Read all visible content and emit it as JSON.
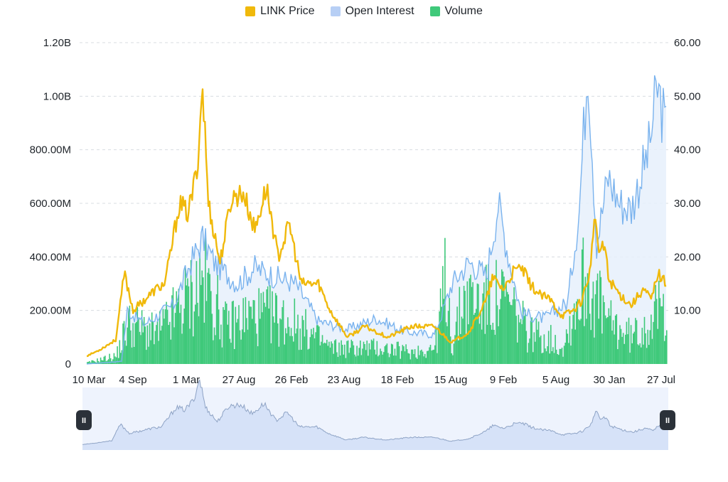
{
  "legend": [
    {
      "label": "LINK Price",
      "color": "#f0b90b"
    },
    {
      "label": "Open Interest",
      "color": "#b7cff5"
    },
    {
      "label": "Volume",
      "color": "#3fc97a"
    }
  ],
  "chart_data": {
    "type": "line",
    "x_tick_labels": [
      "10 Mar",
      "4 Sep",
      "1 Mar",
      "27 Aug",
      "26 Feb",
      "23 Aug",
      "18 Feb",
      "15 Aug",
      "9 Feb",
      "5 Aug",
      "30 Jan",
      "27 Jul"
    ],
    "left_axis": {
      "ticks": [
        "0",
        "200.00M",
        "400.00M",
        "600.00M",
        "800.00M",
        "1.00B",
        "1.20B"
      ],
      "ylim": [
        0,
        1200000000
      ]
    },
    "right_axis": {
      "ticks": [
        "10.00",
        "20.00",
        "30.00",
        "40.00",
        "50.00",
        "60.00"
      ],
      "ylim": [
        0,
        60
      ]
    },
    "grid": true,
    "legend_position": "top-center",
    "series": [
      {
        "name": "LINK Price",
        "type": "line",
        "axis": "right",
        "color": "#f0b90b",
        "points": [
          [
            0,
            1.5
          ],
          [
            0.02,
            2.5
          ],
          [
            0.05,
            4.5
          ],
          [
            0.065,
            17
          ],
          [
            0.08,
            10
          ],
          [
            0.1,
            12
          ],
          [
            0.12,
            14
          ],
          [
            0.135,
            15
          ],
          [
            0.16,
            30
          ],
          [
            0.175,
            28
          ],
          [
            0.19,
            36
          ],
          [
            0.2,
            52
          ],
          [
            0.21,
            30
          ],
          [
            0.23,
            19
          ],
          [
            0.25,
            31
          ],
          [
            0.27,
            32
          ],
          [
            0.29,
            25
          ],
          [
            0.31,
            33
          ],
          [
            0.33,
            20
          ],
          [
            0.35,
            26
          ],
          [
            0.37,
            15
          ],
          [
            0.4,
            15
          ],
          [
            0.42,
            10
          ],
          [
            0.45,
            5
          ],
          [
            0.48,
            7
          ],
          [
            0.52,
            5
          ],
          [
            0.56,
            7
          ],
          [
            0.6,
            7
          ],
          [
            0.63,
            4
          ],
          [
            0.66,
            6
          ],
          [
            0.69,
            12
          ],
          [
            0.7,
            16
          ],
          [
            0.72,
            14
          ],
          [
            0.735,
            17
          ],
          [
            0.75,
            18
          ],
          [
            0.765,
            15
          ],
          [
            0.78,
            13
          ],
          [
            0.8,
            12
          ],
          [
            0.82,
            9
          ],
          [
            0.84,
            10
          ],
          [
            0.855,
            12
          ],
          [
            0.87,
            18
          ],
          [
            0.875,
            27
          ],
          [
            0.885,
            21
          ],
          [
            0.895,
            22
          ],
          [
            0.9,
            16
          ],
          [
            0.92,
            13
          ],
          [
            0.94,
            11
          ],
          [
            0.96,
            14
          ],
          [
            0.975,
            12
          ],
          [
            0.985,
            17
          ],
          [
            1,
            15
          ]
        ]
      },
      {
        "name": "Open Interest",
        "type": "area",
        "axis": "left",
        "color": "#7ab3ee",
        "points": [
          [
            0,
            0
          ],
          [
            0.06,
            10000000
          ],
          [
            0.07,
            200000000
          ],
          [
            0.1,
            150000000
          ],
          [
            0.15,
            220000000
          ],
          [
            0.18,
            380000000
          ],
          [
            0.2,
            470000000
          ],
          [
            0.22,
            380000000
          ],
          [
            0.26,
            300000000
          ],
          [
            0.29,
            360000000
          ],
          [
            0.32,
            330000000
          ],
          [
            0.36,
            300000000
          ],
          [
            0.4,
            160000000
          ],
          [
            0.45,
            130000000
          ],
          [
            0.5,
            170000000
          ],
          [
            0.55,
            120000000
          ],
          [
            0.6,
            110000000
          ],
          [
            0.615,
            200000000
          ],
          [
            0.63,
            300000000
          ],
          [
            0.66,
            380000000
          ],
          [
            0.69,
            330000000
          ],
          [
            0.71,
            600000000
          ],
          [
            0.73,
            380000000
          ],
          [
            0.75,
            190000000
          ],
          [
            0.79,
            170000000
          ],
          [
            0.83,
            230000000
          ],
          [
            0.85,
            580000000
          ],
          [
            0.865,
            1150000000
          ],
          [
            0.88,
            450000000
          ],
          [
            0.9,
            700000000
          ],
          [
            0.92,
            600000000
          ],
          [
            0.94,
            580000000
          ],
          [
            0.97,
            800000000
          ],
          [
            0.985,
            1030000000
          ],
          [
            1,
            870000000
          ]
        ]
      },
      {
        "name": "Volume",
        "type": "bar",
        "axis": "left",
        "color": "#3fc97a",
        "points": [
          [
            0,
            5000000
          ],
          [
            0.05,
            30000000
          ],
          [
            0.07,
            150000000
          ],
          [
            0.12,
            110000000
          ],
          [
            0.2,
            310000000
          ],
          [
            0.24,
            140000000
          ],
          [
            0.28,
            180000000
          ],
          [
            0.32,
            180000000
          ],
          [
            0.36,
            150000000
          ],
          [
            0.42,
            60000000
          ],
          [
            0.5,
            60000000
          ],
          [
            0.56,
            45000000
          ],
          [
            0.6,
            60000000
          ],
          [
            0.62,
            330000000
          ],
          [
            0.63,
            60000000
          ],
          [
            0.65,
            250000000
          ],
          [
            0.68,
            230000000
          ],
          [
            0.72,
            240000000
          ],
          [
            0.76,
            120000000
          ],
          [
            0.8,
            90000000
          ],
          [
            0.82,
            60000000
          ],
          [
            0.86,
            330000000
          ],
          [
            0.9,
            150000000
          ],
          [
            0.94,
            100000000
          ],
          [
            0.98,
            180000000
          ],
          [
            1,
            220000000
          ]
        ]
      }
    ]
  },
  "navigator": {
    "left_handle": "II",
    "right_handle": "II"
  }
}
